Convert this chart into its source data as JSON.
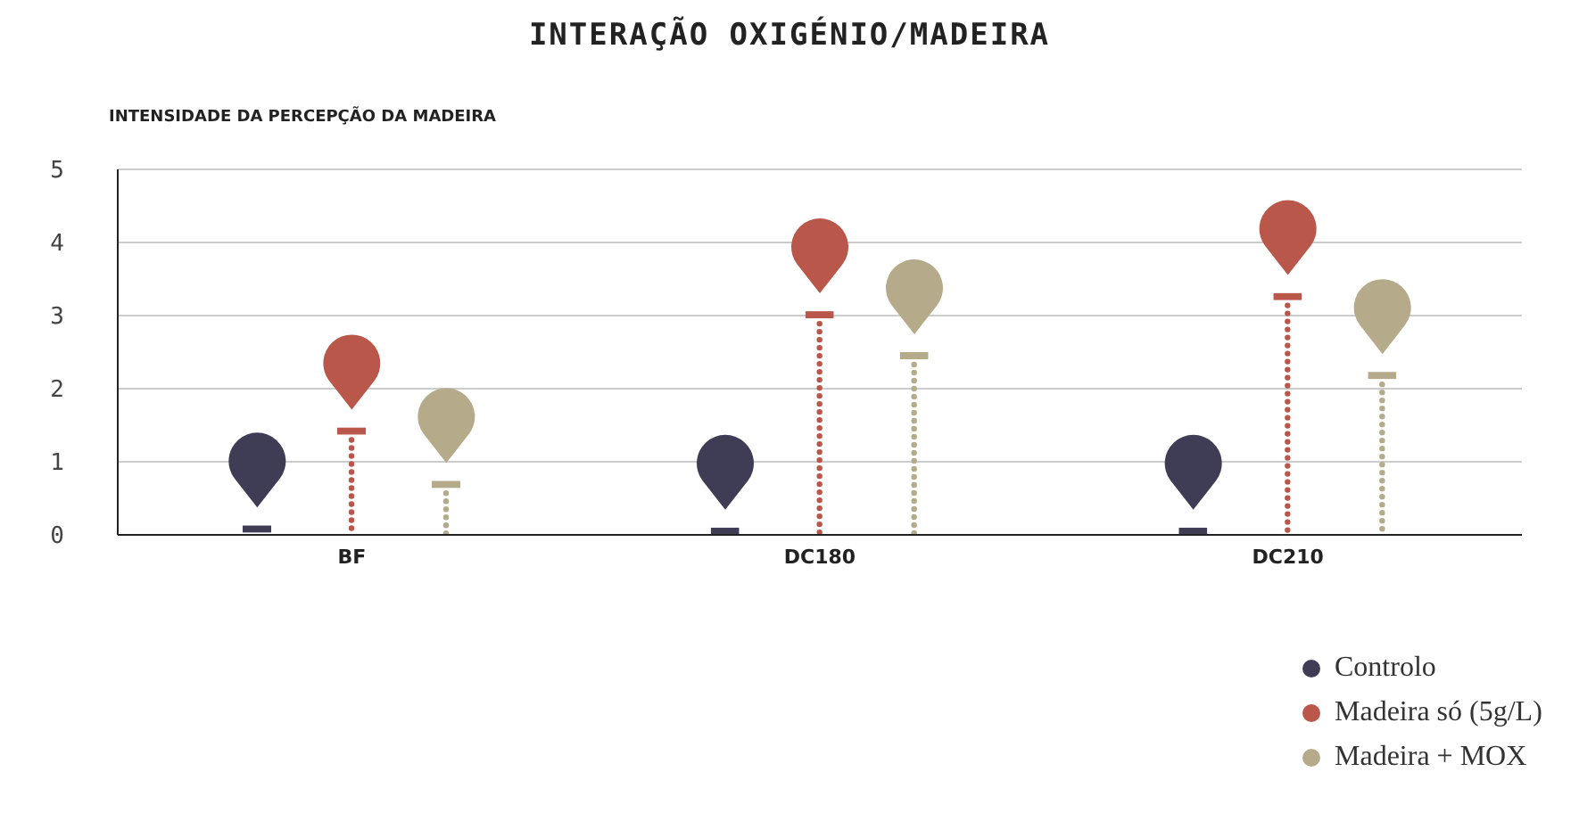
{
  "chart_data": {
    "type": "bar",
    "title": "INTERAÇÃO OXIGÉNIO/MADEIRA",
    "ylabel": "INTENSIDADE DA PERCEPÇÃO DA MADEIRA",
    "categories": [
      "BF",
      "DC180",
      "DC210"
    ],
    "series": [
      {
        "name": "Controlo",
        "color": "#3f3d56",
        "values": [
          0.13,
          0.1,
          0.1
        ]
      },
      {
        "name": "Madeira só (5g/L)",
        "color": "#b9574a",
        "values": [
          1.47,
          3.06,
          3.31
        ]
      },
      {
        "name": "Madeira + MOX",
        "color": "#b5ab8a",
        "values": [
          0.74,
          2.5,
          2.23
        ]
      }
    ],
    "ylim": [
      0,
      5
    ],
    "yticks": [
      0,
      1,
      2,
      3,
      4,
      5
    ],
    "grid": "y",
    "legend": "bottom right"
  }
}
